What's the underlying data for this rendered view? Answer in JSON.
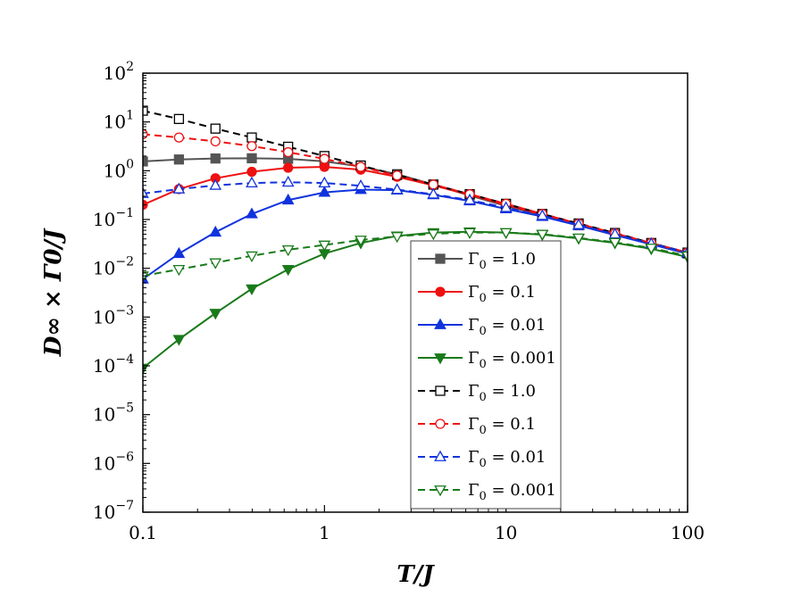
{
  "chart_data": {
    "type": "line",
    "xlabel": "T/J",
    "ylabel": "D∞ × Γ0/J",
    "xscale": "log",
    "yscale": "log",
    "xlim": [
      0.1,
      100
    ],
    "ylim": [
      1e-07,
      100
    ],
    "x_ticks": [
      {
        "value": 0.1,
        "label": "0.1"
      },
      {
        "value": 1,
        "label": "1"
      },
      {
        "value": 10,
        "label": "10"
      },
      {
        "value": 100,
        "label": "100"
      }
    ],
    "y_ticks": [
      {
        "value": 100,
        "base": "10",
        "exp": "2"
      },
      {
        "value": 10,
        "base": "10",
        "exp": "1"
      },
      {
        "value": 1,
        "base": "10",
        "exp": "0"
      },
      {
        "value": 0.1,
        "base": "10",
        "exp": "−1"
      },
      {
        "value": 0.01,
        "base": "10",
        "exp": "−2"
      },
      {
        "value": 0.001,
        "base": "10",
        "exp": "−3"
      },
      {
        "value": 0.0001,
        "base": "10",
        "exp": "−4"
      },
      {
        "value": 1e-05,
        "base": "10",
        "exp": "−5"
      },
      {
        "value": 1e-06,
        "base": "10",
        "exp": "−6"
      },
      {
        "value": 1e-07,
        "base": "10",
        "exp": "−7"
      }
    ],
    "grid": false,
    "legend_position": "center-right",
    "x": [
      0.1,
      0.158,
      0.251,
      0.398,
      0.631,
      1.0,
      1.585,
      2.512,
      3.981,
      6.31,
      10.0,
      15.85,
      25.12,
      39.81,
      63.1,
      100.0
    ],
    "series": [
      {
        "name": "Γ0 = 1.0",
        "legend_sub": "0",
        "legend_prefix": "Γ",
        "legend_suffix": " = 1.0",
        "color": "#555555",
        "dash": "solid",
        "marker": "square",
        "filled": true,
        "values": [
          1.55,
          1.7,
          1.78,
          1.8,
          1.75,
          1.55,
          1.22,
          0.85,
          0.52,
          0.31,
          0.19,
          0.12,
          0.076,
          0.048,
          0.031,
          0.02
        ]
      },
      {
        "name": "Γ0 = 0.1",
        "legend_sub": "0",
        "legend_prefix": "Γ",
        "legend_suffix": " = 0.1",
        "color": "#ee1111",
        "dash": "solid",
        "marker": "circle",
        "filled": true,
        "values": [
          0.2,
          0.42,
          0.7,
          0.95,
          1.15,
          1.2,
          1.05,
          0.75,
          0.5,
          0.32,
          0.2,
          0.125,
          0.08,
          0.05,
          0.032,
          0.02
        ]
      },
      {
        "name": "Γ0 = 0.01",
        "legend_sub": "0",
        "legend_prefix": "Γ",
        "legend_suffix": " = 0.01",
        "color": "#1133dd",
        "dash": "solid",
        "marker": "triangle-up",
        "filled": true,
        "values": [
          0.006,
          0.02,
          0.055,
          0.13,
          0.25,
          0.36,
          0.41,
          0.4,
          0.32,
          0.24,
          0.165,
          0.115,
          0.075,
          0.048,
          0.031,
          0.02
        ]
      },
      {
        "name": "Γ0 = 0.001",
        "legend_sub": "0",
        "legend_prefix": "Γ",
        "legend_suffix": " = 0.001",
        "color": "#1a7a1a",
        "dash": "solid",
        "marker": "triangle-down",
        "filled": true,
        "values": [
          9e-05,
          0.00035,
          0.0012,
          0.0038,
          0.0095,
          0.02,
          0.033,
          0.046,
          0.054,
          0.056,
          0.054,
          0.049,
          0.041,
          0.033,
          0.025,
          0.017
        ]
      },
      {
        "name": "Γ0 = 1.0",
        "legend_sub": "0",
        "legend_prefix": "Γ",
        "legend_suffix": " = 1.0",
        "color": "#000000",
        "dash": "dashed",
        "marker": "square",
        "filled": false,
        "values": [
          17,
          11.5,
          7.3,
          4.8,
          3.1,
          2.0,
          1.28,
          0.82,
          0.52,
          0.33,
          0.21,
          0.13,
          0.083,
          0.053,
          0.033,
          0.021
        ]
      },
      {
        "name": "Γ0 = 0.1",
        "legend_sub": "0",
        "legend_prefix": "Γ",
        "legend_suffix": " = 0.1",
        "color": "#ee1111",
        "dash": "dashed",
        "marker": "circle",
        "filled": false,
        "values": [
          5.6,
          4.8,
          4.0,
          3.2,
          2.4,
          1.75,
          1.2,
          0.8,
          0.52,
          0.33,
          0.21,
          0.13,
          0.082,
          0.052,
          0.033,
          0.021
        ]
      },
      {
        "name": "Γ0 = 0.01",
        "legend_sub": "0",
        "legend_prefix": "Γ",
        "legend_suffix": " = 0.01",
        "color": "#1133dd",
        "dash": "dashed",
        "marker": "triangle-up",
        "filled": false,
        "values": [
          0.34,
          0.42,
          0.5,
          0.56,
          0.58,
          0.56,
          0.49,
          0.41,
          0.33,
          0.25,
          0.175,
          0.12,
          0.078,
          0.05,
          0.032,
          0.021
        ]
      },
      {
        "name": "Γ0 = 0.001",
        "legend_sub": "0",
        "legend_prefix": "Γ",
        "legend_suffix": " = 0.001",
        "color": "#1a7a1a",
        "dash": "dashed",
        "marker": "triangle-down",
        "filled": false,
        "values": [
          0.007,
          0.0095,
          0.013,
          0.018,
          0.024,
          0.03,
          0.038,
          0.045,
          0.051,
          0.054,
          0.054,
          0.05,
          0.042,
          0.034,
          0.026,
          0.018
        ]
      }
    ]
  }
}
